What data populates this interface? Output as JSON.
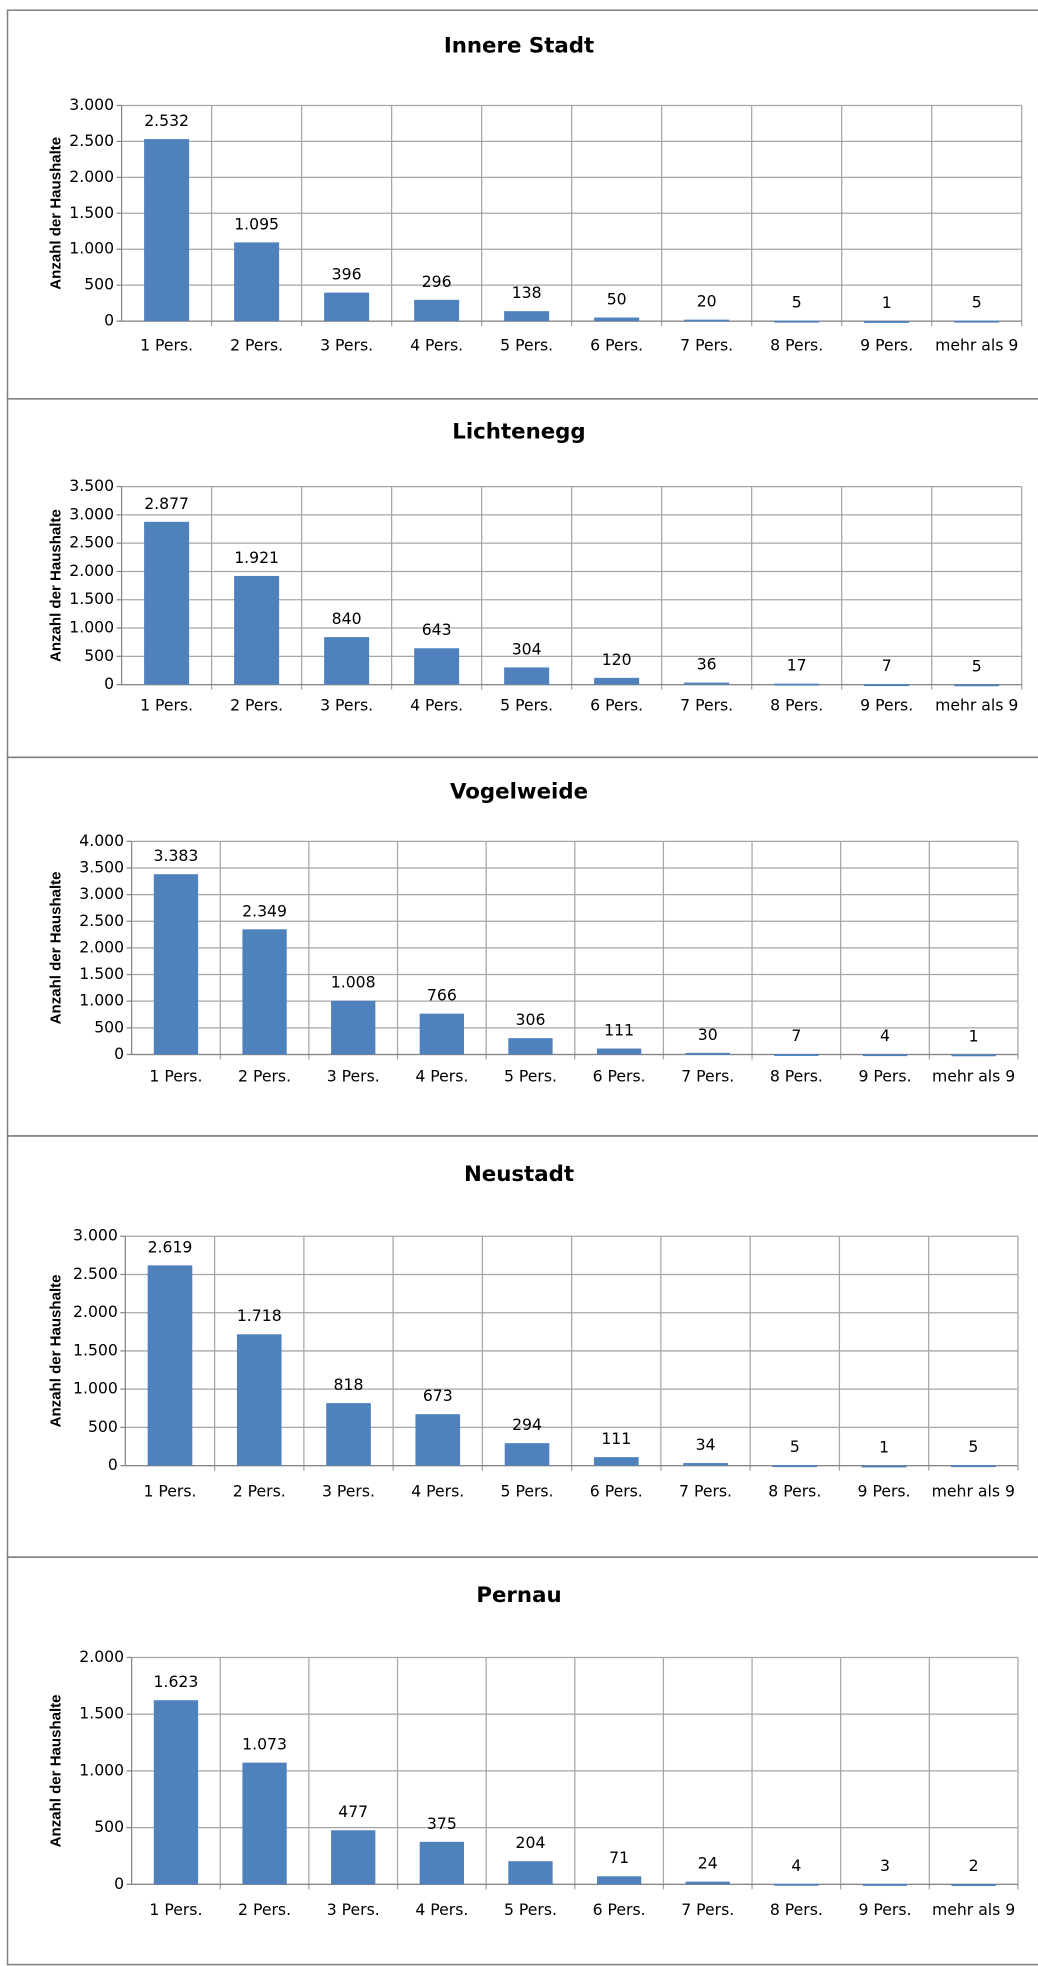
{
  "chart_data": [
    {
      "type": "bar",
      "title": "Innere Stadt",
      "y_label": "Anzahl der Haushalte",
      "color": "#4f81bd",
      "grid": true,
      "categories": [
        "1 Pers.",
        "2 Pers.",
        "3 Pers.",
        "4 Pers.",
        "5 Pers.",
        "6 Pers.",
        "7 Pers.",
        "8 Pers.",
        "9 Pers.",
        "mehr als 9"
      ],
      "values": [
        2532,
        1095,
        396,
        296,
        138,
        50,
        20,
        5,
        1,
        5
      ],
      "value_labels": [
        "2.532",
        "1.095",
        "396",
        "296",
        "138",
        "50",
        "20",
        "5",
        "1",
        "5"
      ],
      "ylim": [
        0,
        3000
      ],
      "yticks": [
        0,
        500,
        {
          "value": 1000,
          "label": "1.000"
        },
        {
          "value": 1500,
          "label": "1.500"
        },
        {
          "value": 2000,
          "label": "2.000"
        },
        {
          "value": 2500,
          "label": "2.500"
        },
        {
          "value": 3000,
          "label": "3.000"
        }
      ]
    },
    {
      "type": "bar",
      "title": "Lichtenegg",
      "y_label": "Anzahl der Haushalte",
      "color": "#4f81bd",
      "grid": true,
      "categories": [
        "1 Pers.",
        "2 Pers.",
        "3 Pers.",
        "4 Pers.",
        "5 Pers.",
        "6 Pers.",
        "7 Pers.",
        "8 Pers.",
        "9 Pers.",
        "mehr als 9"
      ],
      "values": [
        2877,
        1921,
        840,
        643,
        304,
        120,
        36,
        17,
        7,
        5
      ],
      "value_labels": [
        "2.877",
        "1.921",
        "840",
        "643",
        "304",
        "120",
        "36",
        "17",
        "7",
        "5"
      ],
      "ylim": [
        0,
        3500
      ],
      "yticks": [
        0,
        500,
        {
          "value": 1000,
          "label": "1.000"
        },
        {
          "value": 1500,
          "label": "1.500"
        },
        {
          "value": 2000,
          "label": "2.000"
        },
        {
          "value": 2500,
          "label": "2.500"
        },
        {
          "value": 3000,
          "label": "3.000"
        },
        {
          "value": 3500,
          "label": "3.500"
        }
      ]
    },
    {
      "type": "bar",
      "title": "Vogelweide",
      "y_label": "Anzahl der Haushalte",
      "color": "#4f81bd",
      "grid": true,
      "categories": [
        "1 Pers.",
        "2 Pers.",
        "3 Pers.",
        "4 Pers.",
        "5 Pers.",
        "6 Pers.",
        "7 Pers.",
        "8 Pers.",
        "9 Pers.",
        "mehr als 9"
      ],
      "values": [
        3383,
        2349,
        1008,
        766,
        306,
        111,
        30,
        7,
        4,
        1
      ],
      "value_labels": [
        "3.383",
        "2.349",
        "1.008",
        "766",
        "306",
        "111",
        "30",
        "7",
        "4",
        "1"
      ],
      "ylim": [
        0,
        4000
      ],
      "yticks": [
        0,
        500,
        {
          "value": 1000,
          "label": "1.000"
        },
        {
          "value": 1500,
          "label": "1.500"
        },
        {
          "value": 2000,
          "label": "2.000"
        },
        {
          "value": 2500,
          "label": "2.500"
        },
        {
          "value": 3000,
          "label": "3.000"
        },
        {
          "value": 3500,
          "label": "3.500"
        },
        {
          "value": 4000,
          "label": "4.000"
        }
      ]
    },
    {
      "type": "bar",
      "title": "Neustadt",
      "y_label": "Anzahl der Haushalte",
      "color": "#4f81bd",
      "grid": true,
      "categories": [
        "1 Pers.",
        "2 Pers.",
        "3 Pers.",
        "4 Pers.",
        "5 Pers.",
        "6 Pers.",
        "7 Pers.",
        "8 Pers.",
        "9 Pers.",
        "mehr als 9"
      ],
      "values": [
        2619,
        1718,
        818,
        673,
        294,
        111,
        34,
        5,
        1,
        5
      ],
      "value_labels": [
        "2.619",
        "1.718",
        "818",
        "673",
        "294",
        "111",
        "34",
        "5",
        "1",
        "5"
      ],
      "ylim": [
        0,
        3000
      ],
      "yticks": [
        0,
        500,
        {
          "value": 1000,
          "label": "1.000"
        },
        {
          "value": 1500,
          "label": "1.500"
        },
        {
          "value": 2000,
          "label": "2.000"
        },
        {
          "value": 2500,
          "label": "2.500"
        },
        {
          "value": 3000,
          "label": "3.000"
        }
      ]
    },
    {
      "type": "bar",
      "title": "Pernau",
      "y_label": "Anzahl der Haushalte",
      "color": "#4f81bd",
      "grid": true,
      "categories": [
        "1 Pers.",
        "2 Pers.",
        "3 Pers.",
        "4 Pers.",
        "5 Pers.",
        "6 Pers.",
        "7 Pers.",
        "8 Pers.",
        "9 Pers.",
        "mehr als 9"
      ],
      "values": [
        1623,
        1073,
        477,
        375,
        204,
        71,
        24,
        4,
        3,
        2
      ],
      "value_labels": [
        "1.623",
        "1.073",
        "477",
        "375",
        "204",
        "71",
        "24",
        "4",
        "3",
        "2"
      ],
      "ylim": [
        0,
        2000
      ],
      "yticks": [
        0,
        500,
        {
          "value": 1000,
          "label": "1.000"
        },
        {
          "value": 1500,
          "label": "1.500"
        },
        {
          "value": 2000,
          "label": "2.000"
        }
      ]
    }
  ]
}
